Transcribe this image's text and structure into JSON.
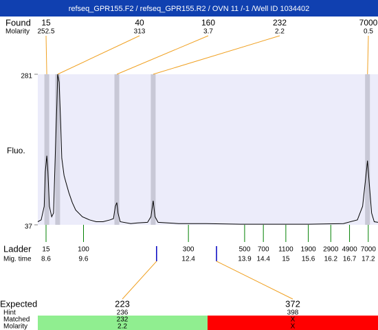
{
  "header": "refseq_GPR155.F2 / refseq_GPR155.R2 / OVN 11  /-1  /Well ID 1034402",
  "chart_data": {
    "type": "electropherogram",
    "y_label": "Fluo.",
    "ylim": [
      37,
      281
    ],
    "yticks": [
      37,
      281
    ],
    "xlim": [
      8.38,
      17.46
    ],
    "color": "#000000",
    "x": [
      8.38,
      8.47,
      8.55,
      8.58,
      8.62,
      8.65,
      8.69,
      8.75,
      8.8,
      8.86,
      8.89,
      8.91,
      8.95,
      8.99,
      9.02,
      9.08,
      9.13,
      9.21,
      9.3,
      9.39,
      9.57,
      9.76,
      9.94,
      10.12,
      10.31,
      10.4,
      10.45,
      10.49,
      10.52,
      10.58,
      10.86,
      11.04,
      11.31,
      11.4,
      11.46,
      11.51,
      11.59,
      12.14,
      12.87,
      13.79,
      14.71,
      15.62,
      16.54,
      16.91,
      17.05,
      17.13,
      17.18,
      17.23,
      17.29,
      17.36,
      17.46
    ],
    "values": [
      42,
      45,
      67,
      123,
      149,
      123,
      67,
      50,
      56,
      179,
      234,
      281,
      268,
      201,
      145,
      117,
      106,
      89,
      73,
      61,
      50,
      45,
      42,
      42,
      45,
      47,
      67,
      73,
      56,
      42,
      39,
      40,
      41,
      50,
      76,
      50,
      41,
      39,
      39,
      38,
      38,
      38,
      39,
      45,
      67,
      112,
      141,
      101,
      56,
      42,
      41
    ],
    "found": {
      "label": "Found",
      "molarity_label": "Molarity",
      "sizes": [
        15,
        40,
        160,
        232,
        7000
      ],
      "molarity": [
        252.5,
        313,
        3.7,
        2.2,
        0.5
      ],
      "times": [
        8.62,
        8.91,
        10.49,
        11.46,
        17.18
      ]
    },
    "ladder": {
      "label": "Ladder",
      "time_label": "Mig. time",
      "sizes": [
        15,
        100,
        300,
        500,
        700,
        1100,
        1900,
        2900,
        4900,
        7000
      ],
      "times": [
        8.6,
        9.6,
        12.4,
        13.9,
        14.4,
        15,
        15.6,
        16.2,
        16.7,
        17.2
      ]
    },
    "expected": {
      "label": "Expected",
      "sizes": [
        223,
        372
      ],
      "times": [
        11.55,
        13.15
      ],
      "hint_label": "Hint",
      "hints": [
        236,
        398
      ],
      "matched_label": "Matched",
      "matched": [
        232,
        "X"
      ],
      "molarity_label": "Molarity",
      "molarity": [
        2.2,
        "X"
      ]
    }
  }
}
